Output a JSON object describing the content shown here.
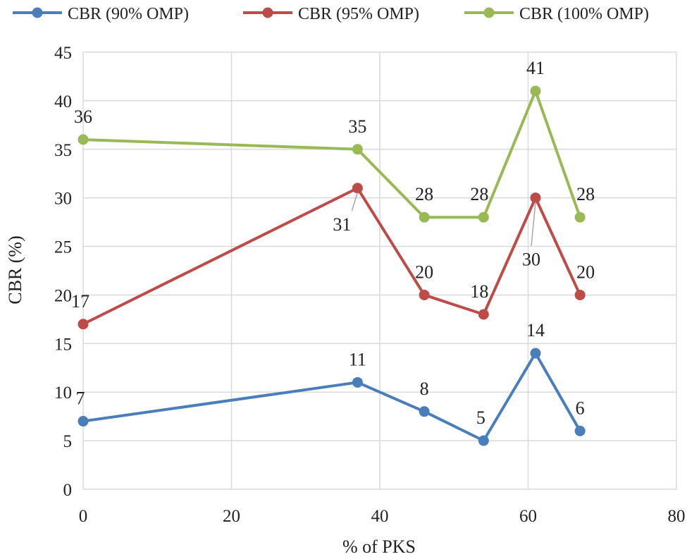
{
  "chart_data": {
    "type": "line",
    "title": "",
    "xlabel": "% of PKS",
    "ylabel": "CBR (%)",
    "xlim": [
      0,
      80
    ],
    "ylim": [
      0,
      45
    ],
    "xticks": [
      0,
      20,
      40,
      60,
      80
    ],
    "yticks": [
      0,
      5,
      10,
      15,
      20,
      25,
      30,
      35,
      40,
      45
    ],
    "grid": true,
    "legend_position": "top",
    "series": [
      {
        "name": "CBR (90% OMP)",
        "color": "#4A7EBB",
        "x": [
          0,
          37,
          46,
          54,
          61,
          67
        ],
        "values": [
          7,
          11,
          8,
          5,
          14,
          6
        ],
        "labels": [
          "7",
          "11",
          "8",
          "5",
          "14",
          "6"
        ]
      },
      {
        "name": "CBR (95% OMP)",
        "color": "#BE4B48",
        "x": [
          0,
          37,
          46,
          54,
          61,
          67
        ],
        "values": [
          17,
          31,
          20,
          18,
          30,
          20
        ],
        "labels": [
          "17",
          "31",
          "20",
          "18",
          "30",
          "20"
        ]
      },
      {
        "name": "CBR (100% OMP)",
        "color": "#98B954",
        "x": [
          0,
          37,
          46,
          54,
          61,
          67
        ],
        "values": [
          36,
          35,
          28,
          28,
          41,
          28
        ],
        "labels": [
          "36",
          "35",
          "28",
          "28",
          "41",
          "28"
        ]
      }
    ]
  }
}
